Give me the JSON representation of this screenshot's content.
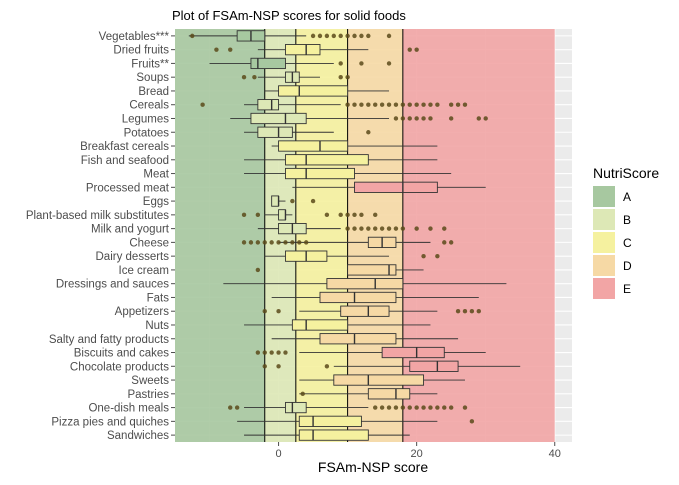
{
  "chart_data": {
    "type": "boxplot",
    "title": "Plot of FSAm-NSP scores for solid foods",
    "xlabel": "FSAm-NSP score",
    "ylabel": "",
    "xlim": [
      -15,
      42.5
    ],
    "xticks": [
      0,
      20,
      40
    ],
    "grid": true,
    "legend": {
      "title": "NutriScore",
      "position": "right",
      "entries": [
        {
          "label": "A",
          "range": [
            -15,
            -2
          ],
          "color": "#a7c8a0"
        },
        {
          "label": "B",
          "range": [
            -2,
            2.5
          ],
          "color": "#dde8b6"
        },
        {
          "label": "C",
          "range": [
            2.5,
            10
          ],
          "color": "#f5f19f"
        },
        {
          "label": "D",
          "range": [
            10,
            18
          ],
          "color": "#f6d9a5"
        },
        {
          "label": "E",
          "range": [
            18,
            40
          ],
          "color": "#f2a5a5"
        }
      ]
    },
    "categories": [
      {
        "name": "Vegetables***",
        "whisker_low": -13,
        "q1": -6,
        "median": -4,
        "q3": -2,
        "whisker_high": 4,
        "outliers": [
          -12.5,
          5,
          6,
          7,
          8,
          9,
          10,
          11,
          12,
          13,
          16
        ]
      },
      {
        "name": "Dried fruits",
        "whisker_low": -3,
        "q1": 1,
        "median": 4,
        "q3": 6,
        "whisker_high": 13,
        "outliers": [
          -9,
          -7,
          19,
          20
        ]
      },
      {
        "name": "Fruits**",
        "whisker_low": -10,
        "q1": -4,
        "median": -3,
        "q3": 1,
        "whisker_high": 8,
        "outliers": [
          9,
          12,
          16
        ]
      },
      {
        "name": "Soups",
        "whisker_low": -3,
        "q1": 1,
        "median": 2,
        "q3": 3,
        "whisker_high": 6,
        "outliers": [
          -5,
          -3.5,
          9,
          10
        ]
      },
      {
        "name": "Bread",
        "whisker_low": -2,
        "q1": 0,
        "median": 3,
        "q3": 10,
        "whisker_high": 16,
        "outliers": []
      },
      {
        "name": "Cereals",
        "whisker_low": -5,
        "q1": -3,
        "median": -1,
        "q3": 0,
        "whisker_high": 9,
        "outliers": [
          -11,
          10,
          11,
          12,
          13,
          14,
          15,
          16,
          17,
          18,
          19,
          20,
          21,
          22,
          23,
          25,
          26,
          27
        ]
      },
      {
        "name": "Legumes",
        "whisker_low": -7,
        "q1": -4,
        "median": 1,
        "q3": 4,
        "whisker_high": 16,
        "outliers": [
          17,
          18,
          19,
          20,
          21,
          22,
          25,
          29,
          30
        ]
      },
      {
        "name": "Potatoes",
        "whisker_low": -5,
        "q1": -3,
        "median": 0,
        "q3": 2,
        "whisker_high": 8,
        "outliers": [
          13
        ]
      },
      {
        "name": "Breakfast cereals",
        "whisker_low": -1,
        "q1": 0,
        "median": 6,
        "q3": 10,
        "whisker_high": 23,
        "outliers": []
      },
      {
        "name": "Fish and seafood",
        "whisker_low": -5,
        "q1": 1,
        "median": 4,
        "q3": 13,
        "whisker_high": 23,
        "outliers": []
      },
      {
        "name": "Meat",
        "whisker_low": -5,
        "q1": 1,
        "median": 4,
        "q3": 11,
        "whisker_high": 25,
        "outliers": []
      },
      {
        "name": "Processed meat",
        "whisker_low": 2,
        "q1": 11,
        "median": 18,
        "q3": 23,
        "whisker_high": 30,
        "outliers": []
      },
      {
        "name": "Eggs",
        "whisker_low": -1,
        "q1": -1,
        "median": 0,
        "q3": 0,
        "whisker_high": 1,
        "outliers": [
          2,
          5
        ]
      },
      {
        "name": "Plant-based milk substitutes",
        "whisker_low": -2,
        "q1": 0,
        "median": 1,
        "q3": 1,
        "whisker_high": 2,
        "outliers": [
          -5,
          -3,
          7,
          9,
          10,
          11,
          12,
          14
        ]
      },
      {
        "name": "Milk and yogurt",
        "whisker_low": -3,
        "q1": 0,
        "median": 2,
        "q3": 4,
        "whisker_high": 9,
        "outliers": [
          10,
          11,
          12,
          13,
          14,
          15,
          16,
          17,
          18,
          20,
          22,
          24
        ]
      },
      {
        "name": "Cheese",
        "whisker_low": 0,
        "q1": 13,
        "median": 15,
        "q3": 17,
        "whisker_high": 22,
        "outliers": [
          -5,
          -4,
          -3,
          -2,
          -1,
          0,
          1,
          2,
          3,
          4,
          24,
          25
        ]
      },
      {
        "name": "Dairy desserts",
        "whisker_low": -2,
        "q1": 1,
        "median": 4,
        "q3": 7,
        "whisker_high": 16,
        "outliers": [
          21,
          23
        ]
      },
      {
        "name": "Ice cream",
        "whisker_low": 10,
        "q1": 10,
        "median": 16,
        "q3": 17,
        "whisker_high": 21,
        "outliers": [
          -3
        ]
      },
      {
        "name": "Dressings and sauces",
        "whisker_low": -8,
        "q1": 7,
        "median": 14,
        "q3": 18,
        "whisker_high": 33,
        "outliers": []
      },
      {
        "name": "Fats",
        "whisker_low": -1,
        "q1": 6,
        "median": 11,
        "q3": 17,
        "whisker_high": 29,
        "outliers": []
      },
      {
        "name": "Appetizers",
        "whisker_low": 3,
        "q1": 9,
        "median": 13,
        "q3": 16,
        "whisker_high": 23,
        "outliers": [
          -2,
          0,
          26,
          27,
          28,
          29
        ]
      },
      {
        "name": "Nuts",
        "whisker_low": -5,
        "q1": 2,
        "median": 4,
        "q3": 10,
        "whisker_high": 22,
        "outliers": []
      },
      {
        "name": "Salty and fatty products",
        "whisker_low": -1,
        "q1": 6,
        "median": 11,
        "q3": 17,
        "whisker_high": 26,
        "outliers": []
      },
      {
        "name": "Biscuits and cakes",
        "whisker_low": 3,
        "q1": 15,
        "median": 20,
        "q3": 24,
        "whisker_high": 30,
        "outliers": [
          -3,
          -2,
          -1,
          0,
          1
        ]
      },
      {
        "name": "Chocolate products",
        "whisker_low": 8,
        "q1": 19,
        "median": 23,
        "q3": 26,
        "whisker_high": 35,
        "outliers": [
          -2,
          0,
          7
        ]
      },
      {
        "name": "Sweets",
        "whisker_low": 3,
        "q1": 8,
        "median": 13,
        "q3": 21,
        "whisker_high": 27,
        "outliers": []
      },
      {
        "name": "Pastries",
        "whisker_low": 3,
        "q1": 13,
        "median": 17,
        "q3": 19,
        "whisker_high": 23,
        "outliers": [
          3.5
        ]
      },
      {
        "name": "One-dish meals",
        "whisker_low": -5,
        "q1": 1,
        "median": 2,
        "q3": 4,
        "whisker_high": 13,
        "outliers": [
          -7,
          -6,
          14,
          15,
          16,
          17,
          18,
          19,
          20,
          21,
          22,
          23,
          24,
          25,
          27
        ]
      },
      {
        "name": "Pizza pies and quiches",
        "whisker_low": -6,
        "q1": 3,
        "median": 5,
        "q3": 12,
        "whisker_high": 23,
        "outliers": [
          28
        ]
      },
      {
        "name": "Sandwiches",
        "whisker_low": -5,
        "q1": 3,
        "median": 5,
        "q3": 13,
        "whisker_high": 19,
        "outliers": []
      }
    ]
  }
}
